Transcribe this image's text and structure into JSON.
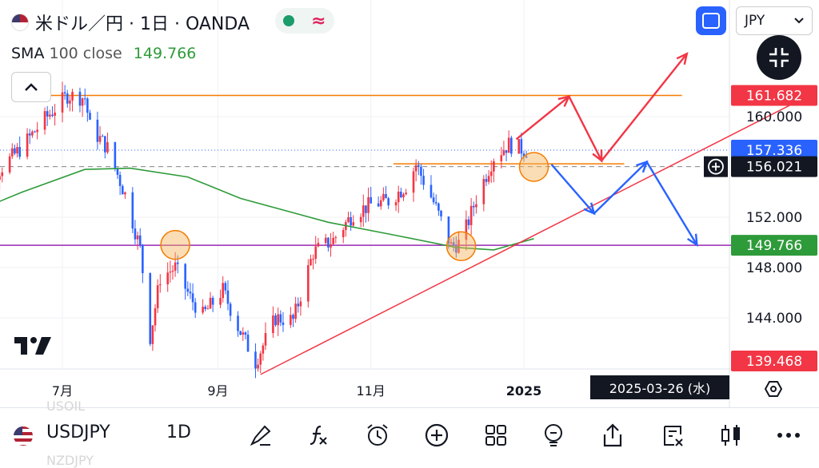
{
  "header": {
    "title": "米ドル／円 · 1日 · OANDA",
    "currency": "JPY",
    "sma_label": "SMA",
    "sma_params": "100 close",
    "sma_value": "149.766"
  },
  "colors": {
    "up": "#f23645",
    "down": "#2962ff",
    "sma": "#2e9b3a",
    "level": "#f57c00",
    "support": "#9c27b0",
    "trend": "#f23645"
  },
  "chart_data": {
    "type": "candlestick",
    "symbol": "USDJPY",
    "interval": "1D",
    "ylim": [
      139.468,
      165.5
    ],
    "price_ticks": [
      160.0,
      156.0,
      152.0,
      148.0,
      144.0
    ],
    "price_tick_labels": [
      "160.000",
      "156.000",
      "152.000",
      "148.000",
      "144.000"
    ],
    "x_ticks": [
      {
        "label": "7月",
        "date": "2024-07-01"
      },
      {
        "label": "9月",
        "date": "2024-09-01"
      },
      {
        "label": "11月",
        "date": "2024-11-01"
      },
      {
        "label": "2025",
        "date": "2025-01-01"
      }
    ],
    "x_range": [
      "2024-05-24",
      "2025-04-20"
    ],
    "candles_path": [
      [
        "2024-05-24",
        156.8
      ],
      [
        "2024-06-05",
        155.6
      ],
      [
        "2024-06-14",
        157.4
      ],
      [
        "2024-06-24",
        159.8
      ],
      [
        "2024-07-03",
        161.7
      ],
      [
        "2024-07-10",
        161.5
      ],
      [
        "2024-07-12",
        159.2
      ],
      [
        "2024-07-19",
        157.5
      ],
      [
        "2024-07-26",
        153.8
      ],
      [
        "2024-08-01",
        149.5
      ],
      [
        "2024-08-05",
        142.5
      ],
      [
        "2024-08-09",
        147.2
      ],
      [
        "2024-08-15",
        148.0
      ],
      [
        "2024-08-21",
        145.6
      ],
      [
        "2024-08-26",
        144.2
      ],
      [
        "2024-09-03",
        146.2
      ],
      [
        "2024-09-09",
        143.3
      ],
      [
        "2024-09-16",
        140.5
      ],
      [
        "2024-09-24",
        144.0
      ],
      [
        "2024-10-01",
        143.8
      ],
      [
        "2024-10-09",
        149.2
      ],
      [
        "2024-10-17",
        150.2
      ],
      [
        "2024-10-25",
        152.3
      ],
      [
        "2024-11-01",
        153.0
      ],
      [
        "2024-11-08",
        153.3
      ],
      [
        "2024-11-15",
        154.5
      ],
      [
        "2024-11-19",
        156.2
      ],
      [
        "2024-11-26",
        153.2
      ],
      [
        "2024-12-03",
        149.7
      ],
      [
        "2024-12-07",
        150.0
      ],
      [
        "2024-12-13",
        153.5
      ],
      [
        "2024-12-20",
        156.8
      ],
      [
        "2024-12-26",
        157.8
      ],
      [
        "2025-01-02",
        157.3
      ]
    ],
    "sma100_path": [
      [
        "2024-05-24",
        152.2
      ],
      [
        "2024-06-15",
        154.0
      ],
      [
        "2024-07-10",
        155.8
      ],
      [
        "2024-07-28",
        155.9
      ],
      [
        "2024-08-20",
        155.2
      ],
      [
        "2024-09-10",
        153.5
      ],
      [
        "2024-10-15",
        151.6
      ],
      [
        "2024-11-10",
        150.6
      ],
      [
        "2024-12-05",
        149.6
      ],
      [
        "2024-12-20",
        149.4
      ],
      [
        "2025-01-05",
        150.3
      ]
    ],
    "labels_on_axis": [
      {
        "text": "161.682",
        "price": 161.682,
        "color": "#f23645"
      },
      {
        "text": "157.336",
        "price": 157.336,
        "color": "#2962ff"
      },
      {
        "text": "156.021",
        "price": 156.021,
        "color": "#131722"
      },
      {
        "text": "149.766",
        "price": 149.766,
        "color": "#2e9b3a"
      },
      {
        "text": "139.468",
        "price": 139.468,
        "color": "#f23645"
      }
    ],
    "cursor_date": "2025-03-26 (水)",
    "horizontal_levels": [
      {
        "price": 161.682,
        "from": "2024-06-25",
        "to": "2025-03-05",
        "color": "#f57c00"
      },
      {
        "price": 156.25,
        "from": "2024-11-10",
        "to": "2025-02-10",
        "color": "#f57c00"
      },
      {
        "price": 149.766,
        "from": "2024-05-24",
        "to": "2025-04-20",
        "color": "#9c27b0"
      }
    ],
    "trendline": {
      "from": [
        "2024-09-18",
        139.5
      ],
      "to": [
        "2025-04-20",
        161.2
      ]
    },
    "scenario_up": [
      [
        "2024-12-29",
        158.2
      ],
      [
        "2025-01-19",
        161.6
      ],
      [
        "2025-02-01",
        156.5
      ],
      [
        "2025-03-07",
        165.0
      ]
    ],
    "scenario_down": [
      [
        "2025-01-12",
        156.2
      ],
      [
        "2025-01-29",
        152.3
      ],
      [
        "2025-02-19",
        156.4
      ],
      [
        "2025-03-11",
        149.8
      ]
    ],
    "circles": [
      {
        "date": "2024-08-15",
        "price": 149.8
      },
      {
        "date": "2024-12-07",
        "price": 149.7
      },
      {
        "date": "2025-01-05",
        "price": 156.0
      }
    ]
  },
  "bottom_bar": {
    "symbol": "USDJPY",
    "interval": "1D",
    "ghost_above": "USOIL",
    "ghost_below": "NZDJPY",
    "tools": [
      "draw-icon",
      "function-icon",
      "alarm-icon",
      "add-icon",
      "grid-icon",
      "idea-icon",
      "share-icon",
      "watchlist-icon",
      "candles-icon",
      "more-icon"
    ]
  }
}
